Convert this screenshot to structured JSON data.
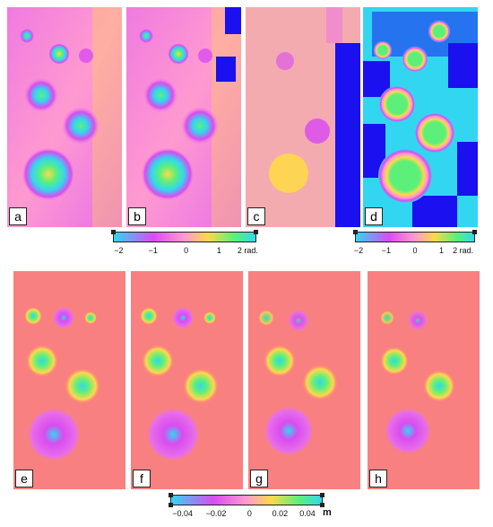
{
  "panels_top": [
    {
      "label": "a"
    },
    {
      "label": "b"
    },
    {
      "label": "c"
    },
    {
      "label": "d"
    }
  ],
  "panels_bottom": [
    {
      "label": "e"
    },
    {
      "label": "f"
    },
    {
      "label": "g"
    },
    {
      "label": "h"
    }
  ],
  "colorbar_phase": {
    "ticks": [
      "−2",
      "−1",
      "0",
      "1",
      "2 rad."
    ]
  },
  "colorbar_phase_d": {
    "ticks": [
      "−2",
      "−1",
      "0",
      "1",
      "2 rad."
    ]
  },
  "colorbar_displacement": {
    "ticks": [
      "−0.04",
      "−0.02",
      "0",
      "0.02",
      "0.04"
    ],
    "unit": "m"
  },
  "colors": {
    "cyclic_colormap": [
      "#33d6f0",
      "#d94cf0",
      "#ff9ad0",
      "#ffd84a",
      "#5cf07a",
      "#33d6f0"
    ],
    "displacement_background": "#f98080",
    "mask_blue": "#1a10f0"
  }
}
